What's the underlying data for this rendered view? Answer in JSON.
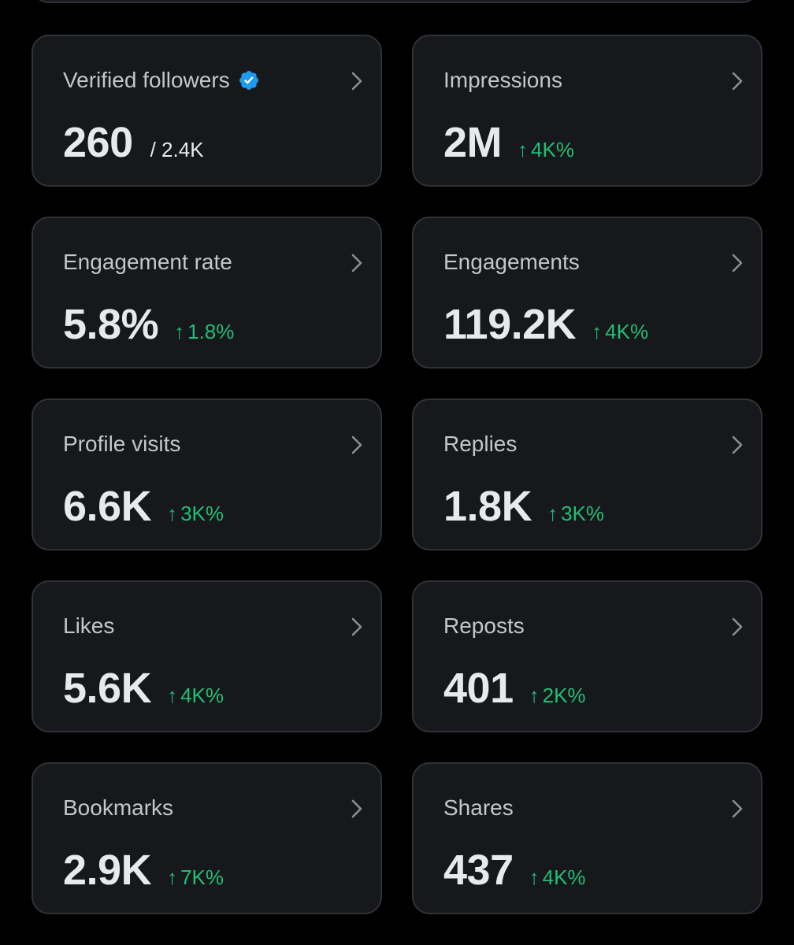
{
  "cards": [
    {
      "title": "Verified followers",
      "value": "260",
      "secondary": "/ 2.4K",
      "verified_icon": "verified-badge-icon",
      "verified_color": "#1d9bf0"
    },
    {
      "title": "Impressions",
      "value": "2M",
      "delta_arrow": "↑",
      "delta": "4K%"
    },
    {
      "title": "Engagement rate",
      "value": "5.8%",
      "delta_arrow": "↑",
      "delta": "1.8%"
    },
    {
      "title": "Engagements",
      "value": "119.2K",
      "delta_arrow": "↑",
      "delta": "4K%"
    },
    {
      "title": "Profile visits",
      "value": "6.6K",
      "delta_arrow": "↑",
      "delta": "3K%"
    },
    {
      "title": "Replies",
      "value": "1.8K",
      "delta_arrow": "↑",
      "delta": "3K%"
    },
    {
      "title": "Likes",
      "value": "5.6K",
      "delta_arrow": "↑",
      "delta": "4K%"
    },
    {
      "title": "Reposts",
      "value": "401",
      "delta_arrow": "↑",
      "delta": "2K%"
    },
    {
      "title": "Bookmarks",
      "value": "2.9K",
      "delta_arrow": "↑",
      "delta": "7K%"
    },
    {
      "title": "Shares",
      "value": "437",
      "delta_arrow": "↑",
      "delta": "4K%"
    }
  ],
  "colors": {
    "background": "#000000",
    "card_background": "#16181c",
    "card_border": "#2f3336",
    "positive_delta": "#1fbf75",
    "verified_badge": "#1d9bf0"
  },
  "icons": {
    "card_chevron": "chevron-right-icon",
    "verified": "verified-badge-icon"
  }
}
